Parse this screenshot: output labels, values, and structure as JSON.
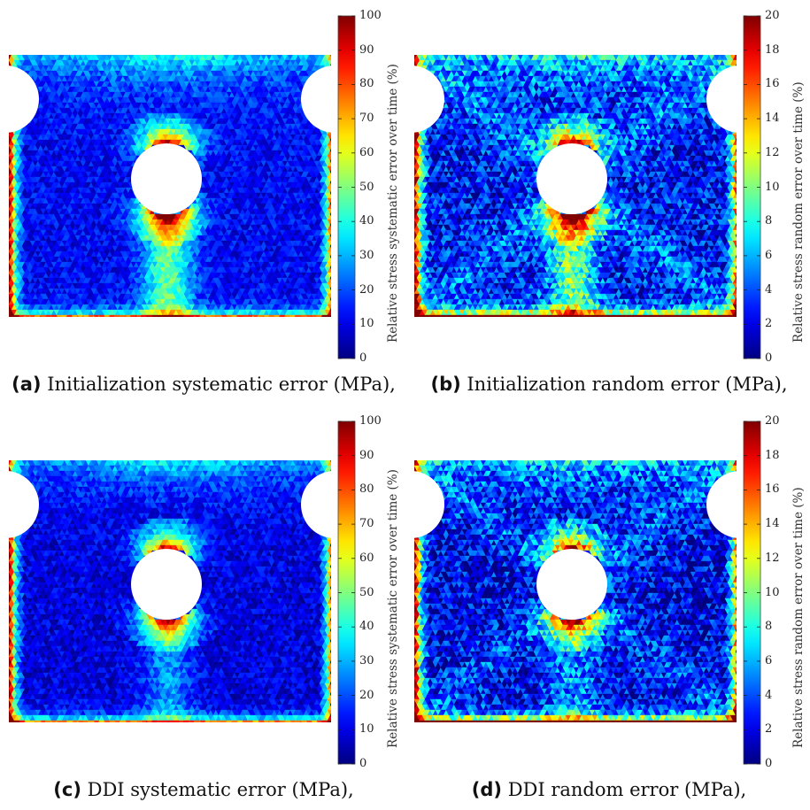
{
  "figure": {
    "panels": [
      {
        "tag": "(a)",
        "caption": "Initialization systematic error (MPa),",
        "colorbar_label": "Relative stress systematic error over time (%)",
        "colorbar_ticks": [
          "0",
          "10",
          "20",
          "30",
          "40",
          "50",
          "60",
          "70",
          "80",
          "90",
          "100"
        ],
        "colorbar_range": [
          0,
          100
        ]
      },
      {
        "tag": "(b)",
        "caption": "Initialization random error (MPa),",
        "colorbar_label": "Relative stress random error over time (%)",
        "colorbar_ticks": [
          "0",
          "2",
          "4",
          "6",
          "8",
          "10",
          "12",
          "14",
          "16",
          "18",
          "20"
        ],
        "colorbar_range": [
          0,
          20
        ]
      },
      {
        "tag": "(c)",
        "caption": "DDI systematic error (MPa),",
        "colorbar_label": "Relative stress systematic error over time (%)",
        "colorbar_ticks": [
          "0",
          "10",
          "20",
          "30",
          "40",
          "50",
          "60",
          "70",
          "80",
          "90",
          "100"
        ],
        "colorbar_range": [
          0,
          100
        ]
      },
      {
        "tag": "(d)",
        "caption": "DDI random error (MPa),",
        "colorbar_label": "Relative stress random error over time (%)",
        "colorbar_ticks": [
          "0",
          "2",
          "4",
          "6",
          "8",
          "10",
          "12",
          "14",
          "16",
          "18",
          "20"
        ],
        "colorbar_range": [
          0,
          20
        ]
      }
    ],
    "colormap": "jet"
  }
}
